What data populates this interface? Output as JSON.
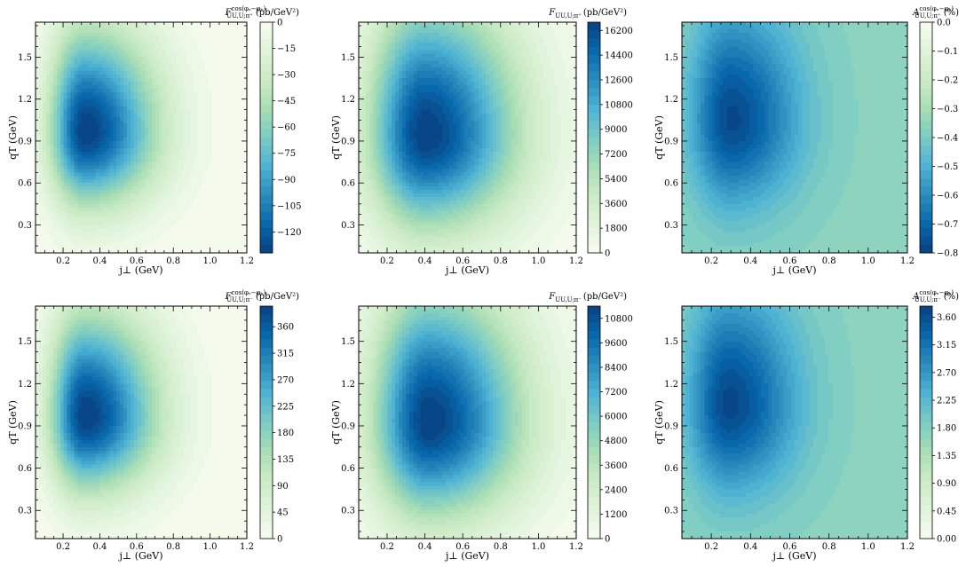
{
  "chart_data": [
    {
      "type": "heatmap",
      "panel": "top-left",
      "title_parts": [
        "F",
        "cos(φₑ−φₕ)",
        "UU,U;π⁺",
        "(pb/GeV²)"
      ],
      "xlabel": "j⊥ (GeV)",
      "ylabel": "qT (GeV)",
      "xlim": [
        0.05,
        1.2
      ],
      "ylim": [
        0.1,
        1.75
      ],
      "xticks": [
        "0.2",
        "0.4",
        "0.6",
        "0.8",
        "1.0",
        "1.2"
      ],
      "yticks": [
        "0.3",
        "0.6",
        "0.9",
        "1.2",
        "1.5"
      ],
      "colorbar": {
        "min": -132,
        "max": 0,
        "reversed": true,
        "ticks": [
          "0",
          "−15",
          "−30",
          "−45",
          "−60",
          "−75",
          "−90",
          "−105",
          "−120"
        ],
        "tick_values": [
          0,
          -15,
          -30,
          -45,
          -60,
          -75,
          -90,
          -105,
          -120
        ]
      },
      "peak": {
        "x": 0.32,
        "y": 0.97,
        "value": -132
      },
      "spread": {
        "x_left": 0.13,
        "x_right": 0.27,
        "y_down": 0.36,
        "y_up": 0.5
      }
    },
    {
      "type": "heatmap",
      "panel": "top-middle",
      "title_parts": [
        "F",
        "",
        "UU,U;π⁺",
        "(pb/GeV²)"
      ],
      "xlabel": "j⊥ (GeV)",
      "ylabel": "qT (GeV)",
      "xlim": [
        0.05,
        1.2
      ],
      "ylim": [
        0.1,
        1.75
      ],
      "xticks": [
        "0.2",
        "0.4",
        "0.6",
        "0.8",
        "1.0",
        "1.2"
      ],
      "yticks": [
        "0.3",
        "0.6",
        "0.9",
        "1.2",
        "1.5"
      ],
      "colorbar": {
        "min": 0,
        "max": 16800,
        "reversed": false,
        "ticks": [
          "0",
          "1800",
          "3600",
          "5400",
          "7200",
          "9000",
          "10800",
          "12600",
          "14400",
          "16200"
        ],
        "tick_values": [
          0,
          1800,
          3600,
          5400,
          7200,
          9000,
          10800,
          12600,
          14400,
          16200
        ]
      },
      "peak": {
        "x": 0.4,
        "y": 0.95,
        "value": 16800
      },
      "spread": {
        "x_left": 0.2,
        "x_right": 0.34,
        "y_down": 0.46,
        "y_up": 0.65
      }
    },
    {
      "type": "heatmap",
      "panel": "top-right",
      "title_parts": [
        "A",
        "cos(φₑ−φₕ)",
        "UU,U;π⁺",
        "(%)"
      ],
      "xlabel": "j⊥ (GeV)",
      "ylabel": "qT (GeV)",
      "xlim": [
        0.05,
        1.2
      ],
      "ylim": [
        0.1,
        1.75
      ],
      "xticks": [
        "0.2",
        "0.4",
        "0.6",
        "0.8",
        "1.0",
        "1.2"
      ],
      "yticks": [
        "0.3",
        "0.6",
        "0.9",
        "1.2",
        "1.5"
      ],
      "colorbar": {
        "min": -0.8,
        "max": 0,
        "reversed": true,
        "ticks": [
          "0.0",
          "−0.1",
          "−0.2",
          "−0.3",
          "−0.4",
          "−0.5",
          "−0.6",
          "−0.7",
          "−0.8"
        ],
        "tick_values": [
          0,
          -0.1,
          -0.2,
          -0.3,
          -0.4,
          -0.5,
          -0.6,
          -0.7,
          -0.8
        ]
      },
      "peak": {
        "x": 0.3,
        "y": 1.05,
        "value": -0.78
      },
      "spread": {
        "x_left": 0.14,
        "x_right": 0.24,
        "y_down": 0.42,
        "y_up": 0.55
      },
      "floor": -0.36
    },
    {
      "type": "heatmap",
      "panel": "bottom-left",
      "title_parts": [
        "F",
        "cos(φₑ−φₕ)",
        "UU,U;π⁻",
        "(pb/GeV²)"
      ],
      "xlabel": "j⊥ (GeV)",
      "ylabel": "qT (GeV)",
      "xlim": [
        0.05,
        1.2
      ],
      "ylim": [
        0.1,
        1.75
      ],
      "xticks": [
        "0.2",
        "0.4",
        "0.6",
        "0.8",
        "1.0",
        "1.2"
      ],
      "yticks": [
        "0.3",
        "0.6",
        "0.9",
        "1.2",
        "1.5"
      ],
      "colorbar": {
        "min": 0,
        "max": 395,
        "reversed": false,
        "ticks": [
          "0",
          "45",
          "90",
          "135",
          "180",
          "225",
          "270",
          "315",
          "360"
        ],
        "tick_values": [
          0,
          45,
          90,
          135,
          180,
          225,
          270,
          315,
          360
        ]
      },
      "peak": {
        "x": 0.32,
        "y": 0.97,
        "value": 395
      },
      "spread": {
        "x_left": 0.13,
        "x_right": 0.27,
        "y_down": 0.36,
        "y_up": 0.5
      }
    },
    {
      "type": "heatmap",
      "panel": "bottom-middle",
      "title_parts": [
        "F",
        "",
        "UU,U;π⁻",
        "(pb/GeV²)"
      ],
      "xlabel": "j⊥ (GeV)",
      "ylabel": "qT (GeV)",
      "xlim": [
        0.05,
        1.2
      ],
      "ylim": [
        0.1,
        1.75
      ],
      "xticks": [
        "0.2",
        "0.4",
        "0.6",
        "0.8",
        "1.0",
        "1.2"
      ],
      "yticks": [
        "0.3",
        "0.6",
        "0.9",
        "1.2",
        "1.5"
      ],
      "colorbar": {
        "min": 0,
        "max": 11400,
        "reversed": false,
        "ticks": [
          "0",
          "1200",
          "2400",
          "3600",
          "4800",
          "6000",
          "7200",
          "8400",
          "9600",
          "10800"
        ],
        "tick_values": [
          0,
          1200,
          2400,
          3600,
          4800,
          6000,
          7200,
          8400,
          9600,
          10800
        ]
      },
      "peak": {
        "x": 0.42,
        "y": 0.93,
        "value": 11400
      },
      "spread": {
        "x_left": 0.2,
        "x_right": 0.34,
        "y_down": 0.46,
        "y_up": 0.65
      }
    },
    {
      "type": "heatmap",
      "panel": "bottom-right",
      "title_parts": [
        "A",
        "cos(φₑ−φₕ)",
        "UU,U;π⁻",
        "(%)"
      ],
      "xlabel": "j⊥ (GeV)",
      "ylabel": "qT (GeV)",
      "xlim": [
        0.05,
        1.2
      ],
      "ylim": [
        0.1,
        1.75
      ],
      "xticks": [
        "0.2",
        "0.4",
        "0.6",
        "0.8",
        "1.0",
        "1.2"
      ],
      "yticks": [
        "0.3",
        "0.6",
        "0.9",
        "1.2",
        "1.5"
      ],
      "colorbar": {
        "min": 0,
        "max": 3.78,
        "reversed": false,
        "ticks": [
          "0.00",
          "0.45",
          "0.90",
          "1.35",
          "1.80",
          "2.25",
          "2.70",
          "3.15",
          "3.60"
        ],
        "tick_values": [
          0,
          0.45,
          0.9,
          1.35,
          1.8,
          2.25,
          2.7,
          3.15,
          3.6
        ]
      },
      "peak": {
        "x": 0.29,
        "y": 1.05,
        "value": 3.7
      },
      "spread": {
        "x_left": 0.14,
        "x_right": 0.24,
        "y_down": 0.42,
        "y_up": 0.55
      },
      "floor": 1.7
    }
  ],
  "colormap": [
    "#f7fcf0",
    "#e0f3db",
    "#ccebc5",
    "#a8ddb5",
    "#7bccc4",
    "#4eb3d3",
    "#2b8cbe",
    "#0868ac",
    "#084081"
  ]
}
